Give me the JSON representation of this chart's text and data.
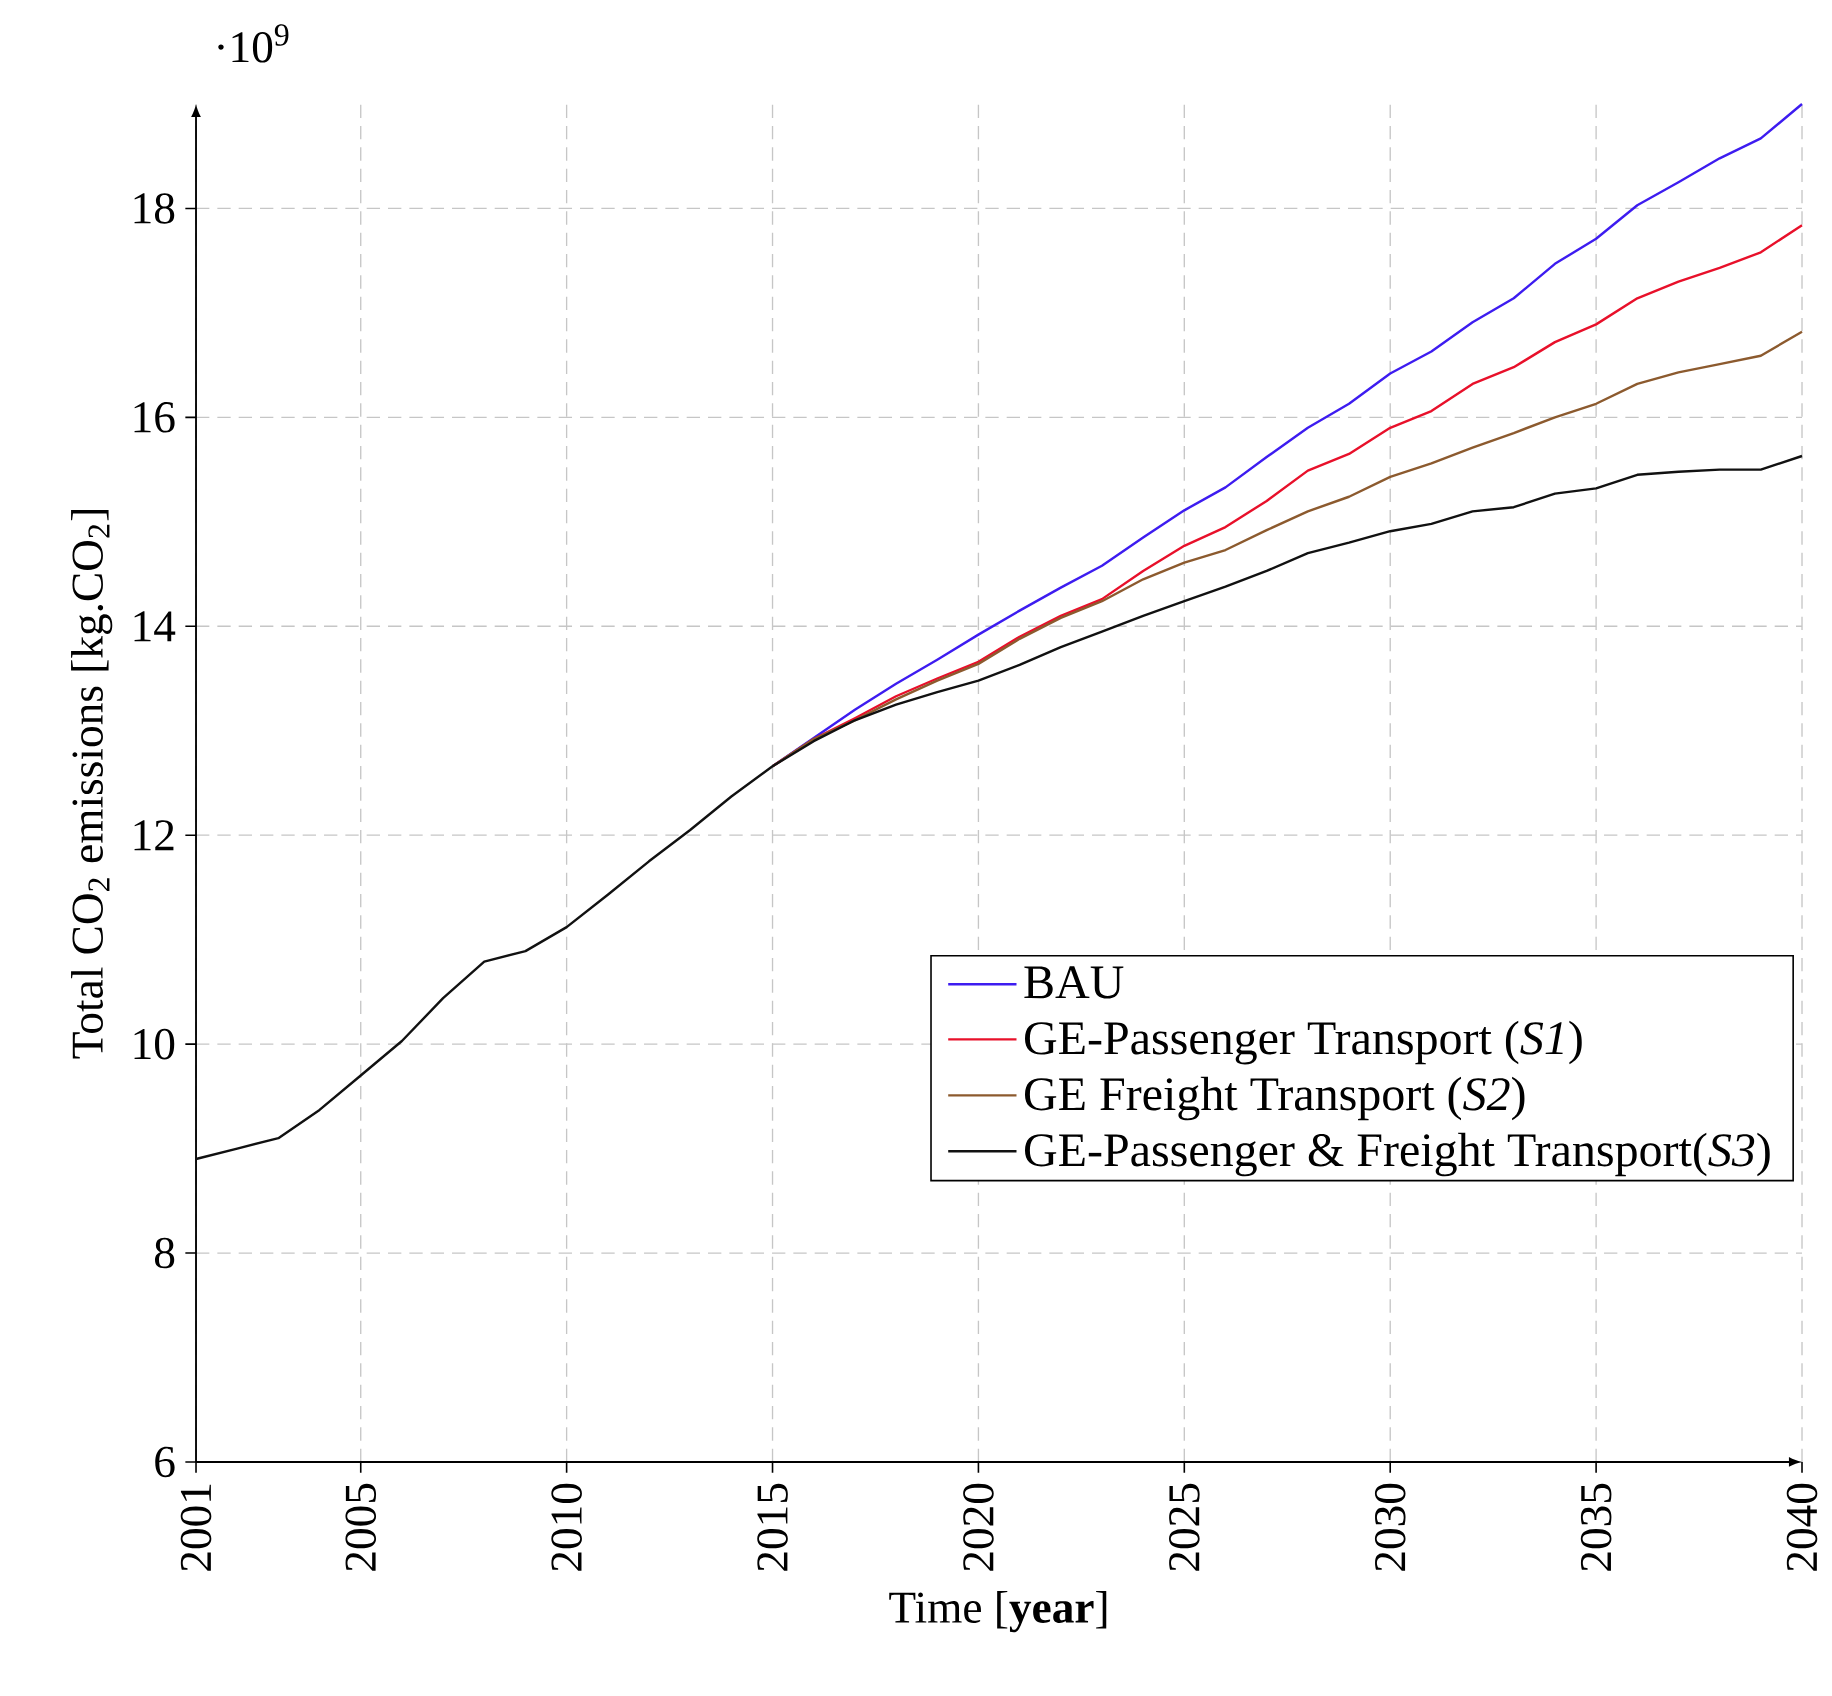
{
  "chart_data": {
    "type": "line",
    "xlabel": "Time [**year**]",
    "ylabel": "Total CO$_{2}$ emissions [kg.CO$_{2}$]",
    "annotations": [
      "·10$^{9}$"
    ],
    "x": [
      2001,
      2002,
      2003,
      2004,
      2005,
      2006,
      2007,
      2008,
      2009,
      2010,
      2011,
      2012,
      2013,
      2014,
      2015,
      2016,
      2017,
      2018,
      2019,
      2020,
      2021,
      2022,
      2023,
      2024,
      2025,
      2026,
      2027,
      2028,
      2029,
      2030,
      2031,
      2032,
      2033,
      2034,
      2035,
      2036,
      2037,
      2038,
      2039,
      2040
    ],
    "xlim": [
      2001,
      2040
    ],
    "xticks": [
      2001,
      2005,
      2010,
      2015,
      2020,
      2025,
      2030,
      2035,
      2040
    ],
    "ylim": [
      6,
      19
    ],
    "yticks": [
      6,
      8,
      10,
      12,
      14,
      16,
      18
    ],
    "grid": true,
    "legend": "right",
    "line_style": "solid",
    "series": [
      {
        "name": "BAU",
        "color": "#3d1cf0",
        "values": [
          null,
          null,
          null,
          null,
          null,
          null,
          null,
          null,
          null,
          null,
          null,
          null,
          null,
          null,
          12.66,
          12.93,
          13.2,
          13.45,
          13.68,
          13.92,
          14.15,
          14.37,
          14.58,
          14.85,
          15.11,
          15.33,
          15.62,
          15.9,
          16.13,
          16.42,
          16.63,
          16.91,
          17.14,
          17.47,
          17.71,
          18.03,
          18.25,
          18.48,
          18.67,
          19.0
        ]
      },
      {
        "name": "GE-Passenger Transport (*S1*)",
        "color": "#e8102a",
        "values": [
          null,
          null,
          null,
          null,
          null,
          null,
          null,
          null,
          null,
          null,
          null,
          null,
          null,
          null,
          12.66,
          12.92,
          13.12,
          13.33,
          13.5,
          13.66,
          13.9,
          14.1,
          14.26,
          14.53,
          14.77,
          14.95,
          15.2,
          15.49,
          15.65,
          15.9,
          16.06,
          16.32,
          16.48,
          16.72,
          16.89,
          17.14,
          17.3,
          17.43,
          17.58,
          17.84
        ]
      },
      {
        "name": "GE Freight Transport (*S2*)",
        "color": "#8c5a2e",
        "values": [
          null,
          null,
          null,
          null,
          null,
          null,
          null,
          null,
          null,
          null,
          null,
          null,
          null,
          null,
          12.66,
          12.92,
          13.1,
          13.3,
          13.48,
          13.64,
          13.88,
          14.08,
          14.24,
          14.45,
          14.61,
          14.73,
          14.92,
          15.1,
          15.24,
          15.43,
          15.56,
          15.71,
          15.85,
          16.0,
          16.13,
          16.32,
          16.43,
          16.51,
          16.59,
          16.82
        ]
      },
      {
        "name": "GE-Passenger & Freight Transport(*S3*)",
        "color": "#111111",
        "values": [
          8.9,
          9.0,
          9.1,
          9.37,
          9.7,
          10.03,
          10.44,
          10.79,
          10.89,
          11.12,
          11.43,
          11.75,
          12.05,
          12.37,
          12.66,
          12.9,
          13.1,
          13.25,
          13.37,
          13.48,
          13.63,
          13.8,
          13.95,
          14.1,
          14.24,
          14.38,
          14.53,
          14.7,
          14.8,
          14.91,
          14.98,
          15.1,
          15.14,
          15.27,
          15.32,
          15.45,
          15.48,
          15.5,
          15.5,
          15.63
        ]
      }
    ]
  }
}
